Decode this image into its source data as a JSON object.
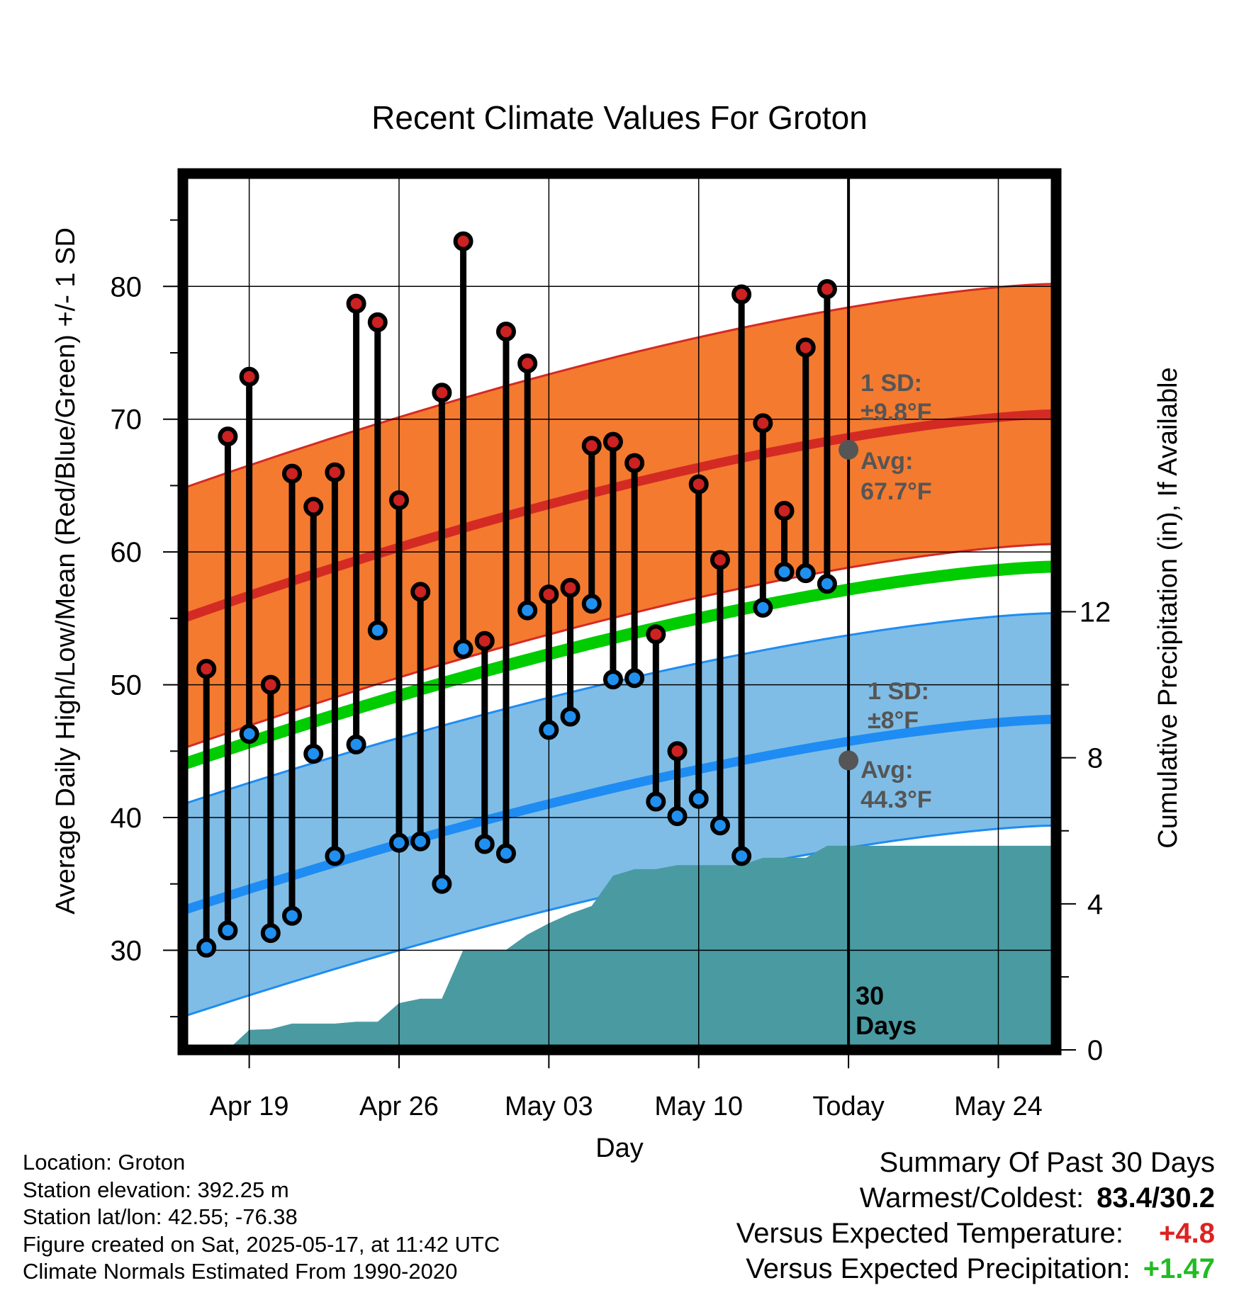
{
  "chart_data": {
    "type": "line",
    "title": "Recent Climate Values For Groton",
    "xlabel": "Day",
    "ylabel": "Average Daily High/Low/Mean (Red/Blue/Green) +/- 1 SD",
    "y2label": "Cumulative Precipitation (in), If Available",
    "x_ticks": [
      {
        "day": 5,
        "label": "Apr 19"
      },
      {
        "day": 12,
        "label": "Apr 26"
      },
      {
        "day": 19,
        "label": "May 03"
      },
      {
        "day": 26,
        "label": "May 10"
      },
      {
        "day": 33,
        "label": "Today"
      },
      {
        "day": 40,
        "label": "May 24"
      }
    ],
    "xlim": [
      1.9,
      42.7
    ],
    "ylim": [
      22.5,
      88.5
    ],
    "y_ticks": [
      30,
      40,
      50,
      60,
      70,
      80
    ],
    "y2lim": [
      0,
      24
    ],
    "y2_ticks": [
      0,
      4,
      8,
      12
    ],
    "today_day": 33,
    "today_label": "30\nDays",
    "days": [
      3,
      4,
      5,
      6,
      7,
      8,
      9,
      10,
      11,
      12,
      13,
      14,
      15,
      16,
      17,
      18,
      19,
      20,
      21,
      22,
      23,
      24,
      25,
      26,
      27,
      28,
      29,
      30,
      31,
      32
    ],
    "highs": [
      51.2,
      68.7,
      73.2,
      50.0,
      65.9,
      63.4,
      66.0,
      78.7,
      77.3,
      63.9,
      57.0,
      72.0,
      83.4,
      53.3,
      76.6,
      74.2,
      56.8,
      57.3,
      68.0,
      68.3,
      66.7,
      53.8,
      45.0,
      65.1,
      59.4,
      79.4,
      69.7,
      63.1,
      75.4,
      79.8
    ],
    "lows": [
      30.2,
      31.5,
      46.3,
      31.3,
      32.6,
      44.8,
      37.1,
      45.5,
      54.1,
      38.1,
      38.2,
      35.0,
      52.7,
      38.0,
      37.3,
      55.6,
      46.6,
      47.6,
      56.1,
      50.4,
      50.5,
      41.2,
      40.1,
      41.4,
      39.4,
      37.1,
      55.8,
      58.5,
      58.4,
      57.6
    ],
    "normal_high_start": 55.0,
    "normal_high_end": 70.4,
    "normal_high_today": 67.7,
    "normal_high_sd": 9.8,
    "normal_low_start": 33.0,
    "normal_low_end": 47.4,
    "normal_low_today": 44.3,
    "normal_low_sd": 8,
    "normal_mean_start": 44.0,
    "normal_mean_end": 58.9,
    "precip_days": [
      2,
      3,
      4,
      5,
      6,
      7,
      8,
      9,
      10,
      11,
      12,
      13,
      14,
      15,
      16,
      17,
      18,
      19,
      20,
      21,
      22,
      23,
      24,
      25,
      26,
      27,
      28,
      29,
      30,
      31,
      32,
      33,
      42.7
    ],
    "precip_cum": [
      0,
      0,
      0,
      0.55,
      0.57,
      0.72,
      0.72,
      0.72,
      0.77,
      0.77,
      1.28,
      1.4,
      1.4,
      2.74,
      2.74,
      2.74,
      3.16,
      3.47,
      3.73,
      3.94,
      4.77,
      4.95,
      4.95,
      5.06,
      5.06,
      5.06,
      5.06,
      5.26,
      5.26,
      5.26,
      5.59,
      5.59,
      5.59
    ],
    "annotations": {
      "high_sd_label": "1 SD:",
      "high_sd_value": "±9.8°F",
      "high_avg_label": "Avg:",
      "high_avg_value": "67.7°F",
      "low_sd_label": "1 SD:",
      "low_sd_value": "±8°F",
      "low_avg_label": "Avg:",
      "low_avg_value": "44.3°F"
    },
    "colors": {
      "high_band": "#f47a2f",
      "high_line": "#d42a24",
      "low_band": "#7fbde6",
      "low_line": "#1e8cf2",
      "mean_line": "#00cc00",
      "precip": "#4a9aa2",
      "high_marker": "#cc2222",
      "low_marker": "#2090f0",
      "avg_dot": "#555555",
      "annotation_text": "#555555"
    }
  },
  "info": {
    "location": "Location: Groton",
    "elevation": "Station elevation: 392.25 m",
    "latlon": "Station lat/lon: 42.55; -76.38",
    "created": "Figure created on Sat, 2025-05-17, at 11:42 UTC",
    "normals": "Climate Normals Estimated From 1990-2020"
  },
  "summary": {
    "title": "Summary Of Past 30 Days",
    "warm_cold_label": "Warmest/Coldest:",
    "warm_cold_value": "83.4/30.2",
    "temp_label": "Versus Expected Temperature:",
    "temp_value": "+4.8",
    "temp_color": "#dd2222",
    "precip_label": "Versus Expected Precipitation:",
    "precip_value": "+1.47",
    "precip_color": "#22bb22"
  }
}
